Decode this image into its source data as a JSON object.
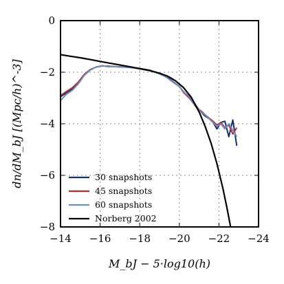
{
  "chart_data": {
    "type": "line",
    "xlabel": "M_bJ − 5·log10(h)",
    "ylabel": "dn/dM_bJ  [(Mpc/h)^-3]",
    "xlim": [
      -14,
      -24
    ],
    "ylim": [
      -8,
      0
    ],
    "x_ticks": [
      -14,
      -16,
      -18,
      -20,
      -22,
      -24
    ],
    "y_ticks": [
      0,
      -2,
      -4,
      -6,
      -8
    ],
    "x_tick_labels": [
      "−14",
      "−16",
      "−18",
      "−20",
      "−22",
      "−24"
    ],
    "y_tick_labels": [
      "0",
      "−2",
      "−4",
      "−6",
      "−8"
    ],
    "grid": true,
    "legend_position": "bottom-left",
    "series": [
      {
        "name": "30 snapshots",
        "color": "#12306e",
        "x": [
          -14.0,
          -14.3,
          -14.6,
          -14.9,
          -15.2,
          -15.5,
          -15.8,
          -16.1,
          -16.4,
          -16.7,
          -17.0,
          -17.3,
          -17.6,
          -17.9,
          -18.2,
          -18.5,
          -18.8,
          -19.1,
          -19.4,
          -19.7,
          -20.0,
          -20.2,
          -20.5,
          -20.7,
          -20.9,
          -21.1,
          -21.3,
          -21.5,
          -21.7,
          -21.9,
          -22.1,
          -22.3,
          -22.5,
          -22.7,
          -22.9
        ],
        "y": [
          -2.95,
          -2.8,
          -2.65,
          -2.4,
          -2.1,
          -1.9,
          -1.8,
          -1.75,
          -1.78,
          -1.78,
          -1.8,
          -1.8,
          -1.82,
          -1.85,
          -1.88,
          -1.92,
          -2.0,
          -2.08,
          -2.2,
          -2.38,
          -2.55,
          -2.75,
          -2.95,
          -3.15,
          -3.35,
          -3.55,
          -3.7,
          -3.8,
          -3.95,
          -4.2,
          -3.95,
          -3.9,
          -4.5,
          -3.85,
          -4.85
        ]
      },
      {
        "name": "45 snapshots",
        "color": "#c0272d",
        "x": [
          -14.0,
          -14.3,
          -14.6,
          -14.9,
          -15.2,
          -15.5,
          -15.8,
          -16.1,
          -16.4,
          -16.7,
          -17.0,
          -17.3,
          -17.6,
          -17.9,
          -18.2,
          -18.5,
          -18.8,
          -19.1,
          -19.4,
          -19.7,
          -20.0,
          -20.2,
          -20.5,
          -20.7,
          -20.9,
          -21.1,
          -21.3,
          -21.5,
          -21.7,
          -21.9,
          -22.1,
          -22.3,
          -22.5,
          -22.7,
          -22.9
        ],
        "y": [
          -2.9,
          -2.75,
          -2.6,
          -2.38,
          -2.08,
          -1.9,
          -1.8,
          -1.76,
          -1.76,
          -1.78,
          -1.79,
          -1.8,
          -1.82,
          -1.84,
          -1.88,
          -1.93,
          -2.0,
          -2.08,
          -2.22,
          -2.4,
          -2.55,
          -2.78,
          -3.0,
          -3.2,
          -3.4,
          -3.5,
          -3.65,
          -3.78,
          -3.9,
          -4.05,
          -3.95,
          -4.15,
          -4.05,
          -4.4,
          -4.15
        ]
      },
      {
        "name": "60 snapshots",
        "color": "#6d8fbf",
        "x": [
          -14.0,
          -14.3,
          -14.6,
          -14.9,
          -15.2,
          -15.5,
          -15.8,
          -16.1,
          -16.4,
          -16.7,
          -17.0,
          -17.3,
          -17.6,
          -17.9,
          -18.2,
          -18.5,
          -18.8,
          -19.1,
          -19.4,
          -19.7,
          -20.0,
          -20.2,
          -20.5,
          -20.7,
          -20.9,
          -21.1,
          -21.3,
          -21.5,
          -21.7,
          -21.9,
          -22.1,
          -22.3,
          -22.5,
          -22.7,
          -22.9
        ],
        "y": [
          -3.1,
          -2.85,
          -2.7,
          -2.45,
          -2.12,
          -1.92,
          -1.8,
          -1.75,
          -1.77,
          -1.78,
          -1.8,
          -1.81,
          -1.83,
          -1.86,
          -1.9,
          -1.93,
          -2.0,
          -2.1,
          -2.22,
          -2.4,
          -2.55,
          -2.75,
          -2.95,
          -3.2,
          -3.35,
          -3.55,
          -3.65,
          -3.8,
          -3.95,
          -4.1,
          -4.0,
          -4.2,
          -4.0,
          -4.25,
          -4.5
        ]
      },
      {
        "name": "Norberg 2002",
        "color": "#000000",
        "x": [
          -14.0,
          -14.5,
          -15.0,
          -15.5,
          -16.0,
          -16.5,
          -17.0,
          -17.5,
          -18.0,
          -18.5,
          -19.0,
          -19.4,
          -19.8,
          -20.2,
          -20.6,
          -21.0,
          -21.3,
          -21.6,
          -21.9,
          -22.2,
          -22.4,
          -22.6,
          -22.8,
          -22.85
        ],
        "y": [
          -1.32,
          -1.38,
          -1.44,
          -1.51,
          -1.58,
          -1.65,
          -1.72,
          -1.79,
          -1.86,
          -1.94,
          -2.04,
          -2.15,
          -2.33,
          -2.59,
          -2.97,
          -3.54,
          -4.09,
          -4.75,
          -5.55,
          -6.51,
          -7.24,
          -8.05,
          -8.95,
          -9.2
        ]
      }
    ]
  }
}
